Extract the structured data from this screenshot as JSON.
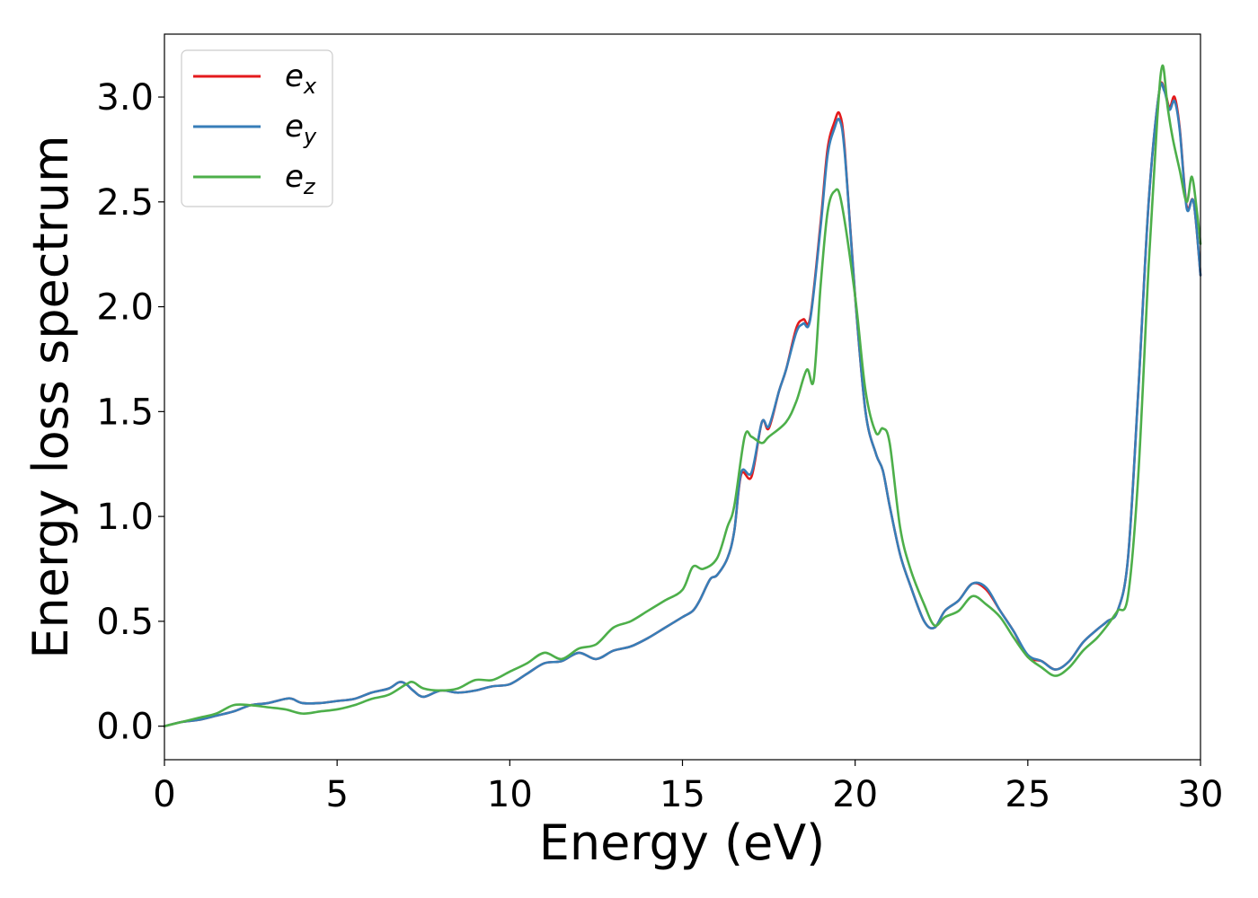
{
  "chart_data": {
    "type": "line",
    "xlabel": "Energy (eV)",
    "ylabel": "Energy loss spectrum",
    "xlim": [
      0,
      30
    ],
    "ylim": [
      -0.16,
      3.3
    ],
    "xticks": [
      0,
      5,
      10,
      15,
      20,
      25,
      30
    ],
    "xtick_labels": [
      "0",
      "5",
      "10",
      "15",
      "20",
      "25",
      "30"
    ],
    "yticks": [
      0.0,
      0.5,
      1.0,
      1.5,
      2.0,
      2.5,
      3.0
    ],
    "ytick_labels": [
      "0.0",
      "0.5",
      "1.0",
      "1.5",
      "2.0",
      "2.5",
      "3.0"
    ],
    "grid": false,
    "legend_position": "top-left",
    "series": [
      {
        "name": "ex",
        "legend_base": "e",
        "legend_sub": "x",
        "color": "#e41a1c",
        "x": [
          0,
          0.5,
          1,
          1.5,
          2,
          2.5,
          3,
          3.5,
          3.7,
          4,
          4.5,
          5,
          5.5,
          6,
          6.5,
          6.8,
          7,
          7.2,
          7.5,
          8,
          8.5,
          9,
          9.5,
          10,
          10.5,
          11,
          11.5,
          12,
          12.5,
          13,
          13.5,
          14,
          14.5,
          15,
          15.3,
          15.5,
          15.8,
          16,
          16.3,
          16.5,
          16.7,
          17,
          17.3,
          17.5,
          17.8,
          18,
          18.3,
          18.5,
          18.7,
          19,
          19.2,
          19.4,
          19.55,
          19.7,
          20,
          20.3,
          20.6,
          20.8,
          21,
          21.3,
          21.6,
          22,
          22.3,
          22.6,
          23,
          23.4,
          23.8,
          24.2,
          24.6,
          25,
          25.4,
          25.8,
          26.2,
          26.6,
          27,
          27.3,
          27.6,
          27.9,
          28.2,
          28.5,
          28.8,
          28.95,
          29.1,
          29.25,
          29.4,
          29.6,
          29.8,
          30
        ],
        "y": [
          0,
          0.02,
          0.03,
          0.05,
          0.07,
          0.1,
          0.11,
          0.13,
          0.13,
          0.11,
          0.11,
          0.12,
          0.13,
          0.16,
          0.18,
          0.21,
          0.2,
          0.17,
          0.14,
          0.17,
          0.16,
          0.17,
          0.19,
          0.2,
          0.25,
          0.3,
          0.31,
          0.35,
          0.32,
          0.36,
          0.38,
          0.42,
          0.47,
          0.52,
          0.55,
          0.6,
          0.7,
          0.72,
          0.8,
          0.93,
          1.2,
          1.19,
          1.45,
          1.42,
          1.6,
          1.7,
          1.9,
          1.94,
          1.95,
          2.4,
          2.75,
          2.88,
          2.92,
          2.75,
          2.05,
          1.5,
          1.3,
          1.22,
          1.05,
          0.82,
          0.67,
          0.5,
          0.47,
          0.55,
          0.6,
          0.68,
          0.65,
          0.55,
          0.45,
          0.33,
          0.31,
          0.27,
          0.31,
          0.4,
          0.46,
          0.5,
          0.55,
          0.8,
          1.6,
          2.5,
          3.02,
          3.04,
          2.95,
          3.0,
          2.85,
          2.48,
          2.5,
          2.15
        ]
      },
      {
        "name": "ey",
        "legend_base": "e",
        "legend_sub": "y",
        "color": "#377eb8",
        "x": [
          0,
          0.5,
          1,
          1.5,
          2,
          2.5,
          3,
          3.5,
          3.7,
          4,
          4.5,
          5,
          5.5,
          6,
          6.5,
          6.8,
          7,
          7.2,
          7.5,
          8,
          8.5,
          9,
          9.5,
          10,
          10.5,
          11,
          11.5,
          12,
          12.5,
          13,
          13.5,
          14,
          14.5,
          15,
          15.3,
          15.5,
          15.8,
          16,
          16.3,
          16.5,
          16.7,
          17,
          17.3,
          17.5,
          17.8,
          18,
          18.3,
          18.5,
          18.7,
          19,
          19.2,
          19.4,
          19.55,
          19.7,
          20,
          20.3,
          20.6,
          20.8,
          21,
          21.3,
          21.6,
          22,
          22.3,
          22.6,
          23,
          23.4,
          23.8,
          24.2,
          24.6,
          25,
          25.4,
          25.8,
          26.2,
          26.6,
          27,
          27.3,
          27.6,
          27.9,
          28.2,
          28.5,
          28.8,
          28.95,
          29.1,
          29.25,
          29.4,
          29.6,
          29.8,
          30
        ],
        "y": [
          0,
          0.02,
          0.03,
          0.05,
          0.07,
          0.1,
          0.11,
          0.13,
          0.13,
          0.11,
          0.11,
          0.12,
          0.13,
          0.16,
          0.18,
          0.21,
          0.2,
          0.17,
          0.14,
          0.17,
          0.16,
          0.17,
          0.19,
          0.2,
          0.25,
          0.3,
          0.31,
          0.35,
          0.32,
          0.36,
          0.38,
          0.42,
          0.47,
          0.52,
          0.55,
          0.6,
          0.7,
          0.72,
          0.8,
          0.93,
          1.21,
          1.21,
          1.45,
          1.43,
          1.6,
          1.7,
          1.88,
          1.92,
          1.94,
          2.38,
          2.72,
          2.85,
          2.89,
          2.73,
          2.05,
          1.5,
          1.3,
          1.22,
          1.05,
          0.82,
          0.67,
          0.5,
          0.47,
          0.55,
          0.6,
          0.68,
          0.66,
          0.55,
          0.45,
          0.34,
          0.31,
          0.27,
          0.31,
          0.4,
          0.46,
          0.5,
          0.55,
          0.8,
          1.6,
          2.5,
          3.02,
          3.03,
          2.94,
          2.98,
          2.84,
          2.47,
          2.5,
          2.15
        ]
      },
      {
        "name": "ez",
        "legend_base": "e",
        "legend_sub": "z",
        "color": "#4daf4a",
        "x": [
          0,
          0.5,
          1,
          1.5,
          2,
          2.5,
          3,
          3.5,
          4,
          4.5,
          5,
          5.5,
          6,
          6.5,
          7,
          7.2,
          7.5,
          8,
          8.5,
          9,
          9.5,
          10,
          10.5,
          11,
          11.5,
          12,
          12.5,
          13,
          13.5,
          14,
          14.5,
          15,
          15.3,
          15.6,
          16,
          16.3,
          16.5,
          16.8,
          17,
          17.3,
          17.5,
          18,
          18.3,
          18.6,
          18.8,
          19,
          19.2,
          19.4,
          19.6,
          20,
          20.3,
          20.6,
          20.8,
          21,
          21.3,
          21.6,
          22,
          22.3,
          22.6,
          23,
          23.4,
          23.8,
          24.2,
          24.6,
          25,
          25.4,
          25.8,
          26.2,
          26.6,
          27,
          27.3,
          27.6,
          27.9,
          28.2,
          28.5,
          28.75,
          28.9,
          29.05,
          29.2,
          29.4,
          29.6,
          29.75,
          29.9,
          30
        ],
        "y": [
          0,
          0.02,
          0.04,
          0.06,
          0.1,
          0.1,
          0.09,
          0.08,
          0.06,
          0.07,
          0.08,
          0.1,
          0.13,
          0.15,
          0.2,
          0.21,
          0.18,
          0.17,
          0.18,
          0.22,
          0.22,
          0.26,
          0.3,
          0.35,
          0.32,
          0.37,
          0.39,
          0.47,
          0.5,
          0.55,
          0.6,
          0.65,
          0.76,
          0.75,
          0.8,
          0.95,
          1.05,
          1.38,
          1.38,
          1.35,
          1.38,
          1.45,
          1.55,
          1.7,
          1.65,
          2.1,
          2.45,
          2.55,
          2.5,
          2.05,
          1.6,
          1.4,
          1.42,
          1.35,
          0.95,
          0.75,
          0.58,
          0.48,
          0.52,
          0.55,
          0.62,
          0.58,
          0.52,
          0.42,
          0.33,
          0.28,
          0.24,
          0.28,
          0.36,
          0.42,
          0.48,
          0.55,
          0.62,
          1.2,
          2.2,
          2.9,
          3.15,
          2.95,
          2.8,
          2.65,
          2.5,
          2.62,
          2.45,
          2.3
        ]
      }
    ]
  }
}
